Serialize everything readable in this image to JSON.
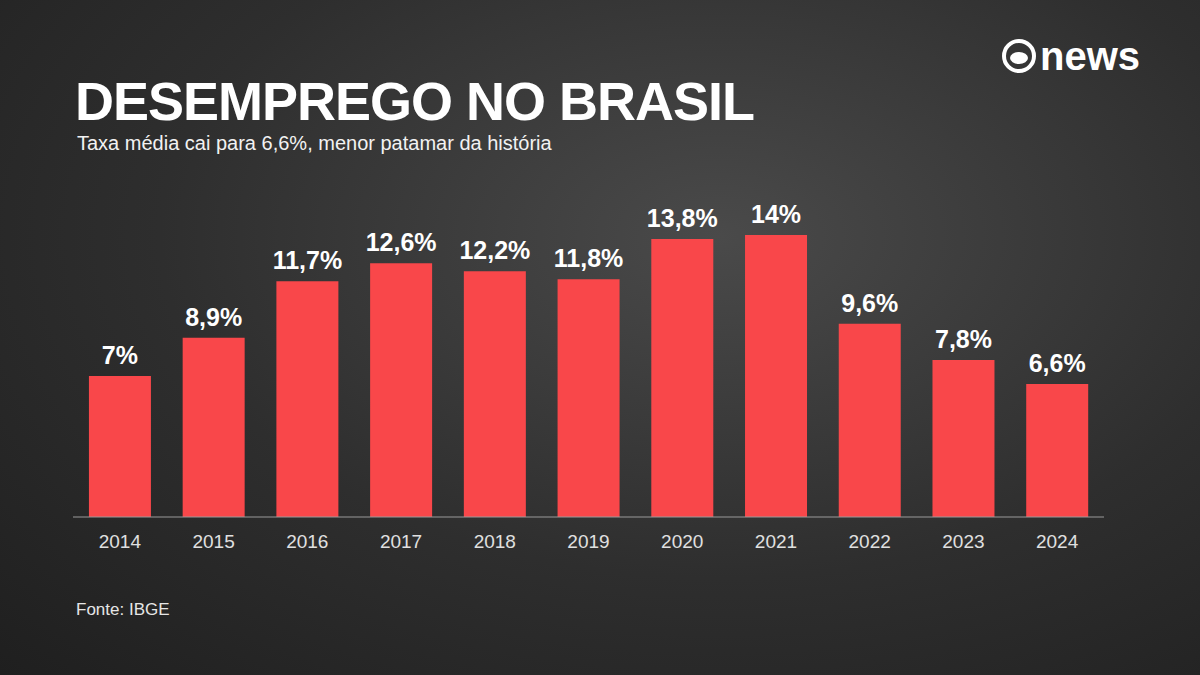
{
  "chart_data": {
    "type": "bar",
    "title": "DESEMPREGO NO BRASIL",
    "subtitle": "Taxa média cai para 6,6%, menor patamar da história",
    "source": "Fonte: IBGE",
    "logo": "news",
    "categories": [
      "2014",
      "2015",
      "2016",
      "2017",
      "2018",
      "2019",
      "2020",
      "2021",
      "2022",
      "2023",
      "2024"
    ],
    "values": [
      7,
      8.9,
      11.7,
      12.6,
      12.2,
      11.8,
      13.8,
      14,
      9.6,
      7.8,
      6.6
    ],
    "value_labels": [
      "7%",
      "8,9%",
      "11,7%",
      "12,6%",
      "12,2%",
      "11,8%",
      "13,8%",
      "14%",
      "9,6%",
      "7,8%",
      "6,6%"
    ],
    "color": "#f9474a",
    "ylim": [
      0,
      14
    ],
    "data_labels": true,
    "tick_labels": "x",
    "grid": false
  }
}
